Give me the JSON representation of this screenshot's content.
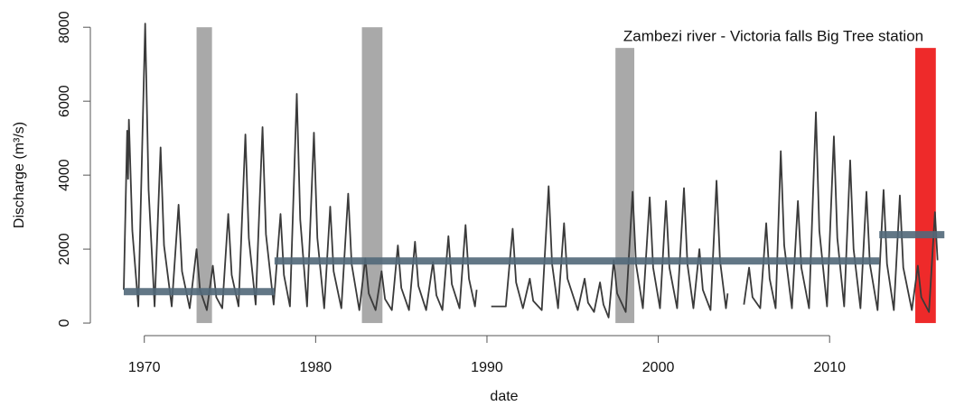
{
  "chart_data": {
    "type": "line",
    "title": "Zambezi river - Victoria falls Big Tree station",
    "x_label": "date",
    "y_label": "Discharge (m³/s)",
    "xlim": [
      1966.85,
      2016.95
    ],
    "ylim": [
      -340,
      8200
    ],
    "xticks": [
      1970,
      1980,
      1990,
      2000,
      2010
    ],
    "yticks": [
      0,
      2000,
      4000,
      6000,
      8000
    ],
    "shaded_periods": [
      {
        "x0": 1973.05,
        "x1": 1973.95,
        "y0": 0,
        "y1": 8000,
        "color": "#a9a9a9"
      },
      {
        "x0": 1982.7,
        "x1": 1983.9,
        "y0": 0,
        "y1": 8000,
        "color": "#a9a9a9"
      },
      {
        "x0": 1997.5,
        "x1": 1998.6,
        "y0": 0,
        "y1": 7440,
        "color": "#a9a9a9"
      },
      {
        "x0": 2015.0,
        "x1": 2016.2,
        "y0": 0,
        "y1": 7440,
        "color": "#ee2a2a"
      }
    ],
    "segments": [
      {
        "x0": 1968.8,
        "x1": 1977.6,
        "value": 850,
        "color": "#52697a"
      },
      {
        "x0": 1977.6,
        "x1": 2012.9,
        "value": 1680,
        "color": "#52697a"
      },
      {
        "x0": 2012.9,
        "x1": 2016.7,
        "value": 2390,
        "color": "#52697a"
      }
    ],
    "series": [
      {
        "color": "#3a3a3a",
        "x": [
          1968.8,
          1969,
          1969.05,
          1969.1,
          1969.3,
          1969.65,
          1970.05,
          1970.25,
          1970.6,
          1970.95,
          1971.15,
          1971.6,
          1972,
          1972.2,
          1972.65,
          1973.05,
          1973.25,
          1973.65,
          1974,
          1974.2,
          1974.55,
          1974.9,
          1975.1,
          1975.5,
          1975.9,
          1976.1,
          1976.5,
          1976.9,
          1977.1,
          1977.55,
          1977.95,
          1978.15,
          1978.5,
          1978.9,
          1979.1,
          1979.5,
          1979.9,
          1980.1,
          1980.5,
          1980.85,
          1981.05,
          1981.5,
          1981.9,
          1982.1,
          1982.55,
          1982.9,
          1983.1,
          1983.5,
          1983.85,
          1984.05,
          1984.45,
          1984.8,
          1985,
          1985.45,
          1985.8,
          1986,
          1986.45,
          1986.85,
          1987.05,
          1987.4,
          1987.75,
          1987.95,
          1988.4,
          1988.75,
          1988.95,
          1989.3,
          1989.4,
          1989.9,
          1990.25,
          1991.1,
          1991.5,
          1991.7,
          1992.1,
          1992.5,
          1992.7,
          1993.2,
          1993.6,
          1993.8,
          1994.15,
          1994.5,
          1994.7,
          1995.3,
          1995.7,
          1995.9,
          1996.25,
          1996.6,
          1996.8,
          1997.1,
          1997.4,
          1997.6,
          1998.1,
          1998.5,
          1998.7,
          1999.1,
          1999.5,
          1999.7,
          2000.1,
          2000.45,
          2000.65,
          2001.1,
          2001.5,
          2001.7,
          2002.05,
          2002.4,
          2002.6,
          2003.05,
          2003.4,
          2003.6,
          2003.95,
          2004.05,
          2004.5,
          2005,
          2005.3,
          2005.5,
          2005.95,
          2006.3,
          2006.5,
          2006.85,
          2007.15,
          2007.35,
          2007.8,
          2008.15,
          2008.35,
          2008.8,
          2009.2,
          2009.4,
          2009.85,
          2010.25,
          2010.45,
          2010.85,
          2011.2,
          2011.4,
          2011.8,
          2012.15,
          2012.35,
          2012.8,
          2013.15,
          2013.35,
          2013.75,
          2014.1,
          2014.3,
          2014.8,
          2015.15,
          2015.35,
          2015.8,
          2016.15,
          2016.3
        ],
        "values": [
          900,
          5200,
          3900,
          5500,
          2500,
          450,
          8100,
          3600,
          450,
          4750,
          2100,
          450,
          3200,
          1400,
          400,
          2000,
          900,
          350,
          1550,
          700,
          400,
          2950,
          1300,
          450,
          5100,
          2300,
          500,
          5300,
          2400,
          500,
          2950,
          1300,
          450,
          6200,
          2800,
          450,
          5150,
          2300,
          400,
          3150,
          1400,
          400,
          3500,
          1600,
          350,
          1750,
          800,
          350,
          1400,
          650,
          350,
          2100,
          950,
          350,
          2200,
          1000,
          350,
          1650,
          750,
          350,
          2350,
          1050,
          400,
          2650,
          1200,
          450,
          900,
          null,
          450,
          450,
          2550,
          1100,
          400,
          1200,
          600,
          350,
          3700,
          1600,
          400,
          2700,
          1200,
          350,
          1200,
          550,
          300,
          1100,
          500,
          150,
          1700,
          800,
          300,
          3550,
          1600,
          400,
          3400,
          1500,
          400,
          3300,
          1500,
          400,
          3650,
          1600,
          400,
          2000,
          900,
          350,
          3850,
          1700,
          400,
          800,
          null,
          500,
          1500,
          700,
          400,
          2700,
          1200,
          400,
          4650,
          2100,
          400,
          3300,
          1500,
          400,
          5700,
          2500,
          450,
          5050,
          2300,
          450,
          4400,
          2000,
          400,
          3550,
          1600,
          350,
          3600,
          1600,
          350,
          3450,
          1500,
          350,
          1550,
          700,
          300,
          3000,
          1700
        ]
      }
    ]
  }
}
